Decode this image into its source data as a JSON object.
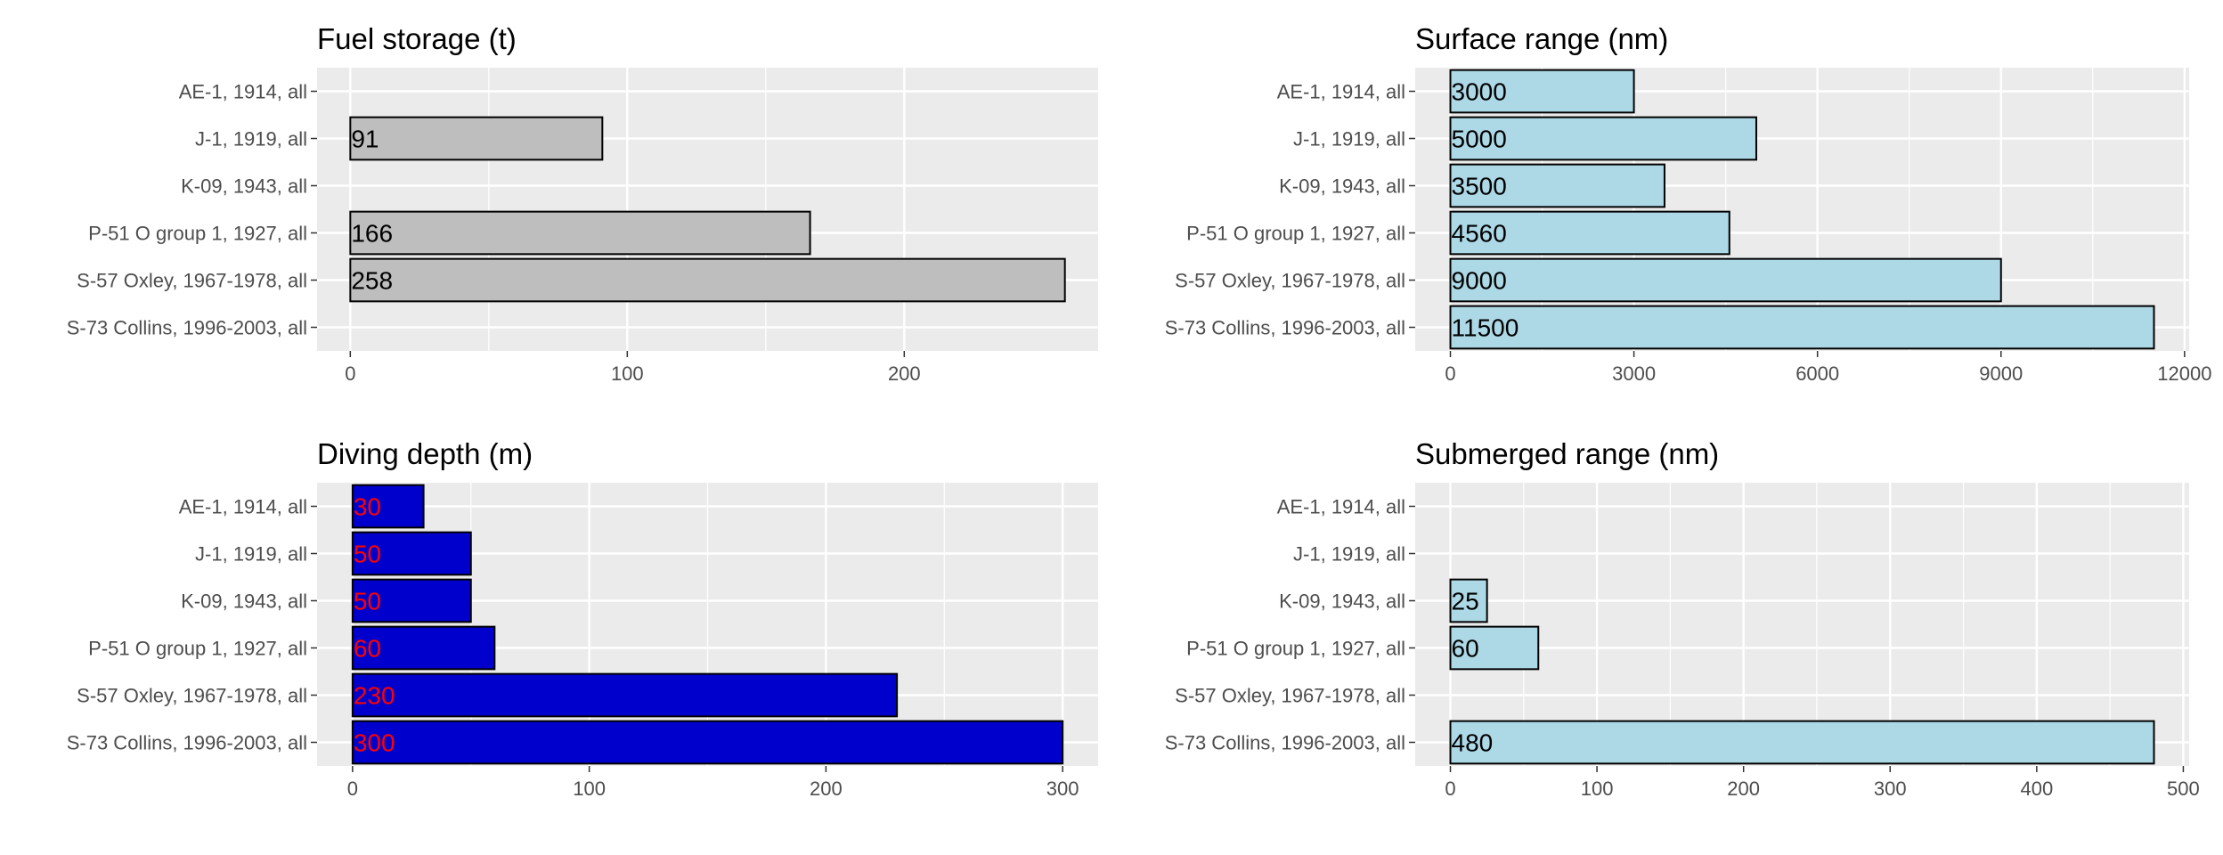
{
  "chart_data": [
    {
      "type": "bar",
      "orientation": "horizontal",
      "title": "Fuel storage (t)",
      "categories": [
        "AE-1, 1914, all",
        "J-1, 1919, all",
        "K-09, 1943, all",
        "P-51 O group 1, 1927, all",
        "S-57 Oxley, 1967-1978, all",
        "S-73 Collins, 1996-2003, all"
      ],
      "values": [
        null,
        91,
        null,
        166,
        258,
        null
      ],
      "xlim": [
        -12,
        270
      ],
      "xticks": [
        0,
        100,
        200
      ],
      "fill": "#bebebe",
      "label_color": "#000000",
      "grid": true
    },
    {
      "type": "bar",
      "orientation": "horizontal",
      "title": "Surface range (nm)",
      "categories": [
        "AE-1, 1914, all",
        "J-1, 1919, all",
        "K-09, 1943, all",
        "P-51 O group 1, 1927, all",
        "S-57 Oxley, 1967-1978, all",
        "S-73 Collins, 1996-2003, all"
      ],
      "values": [
        3000,
        5000,
        3500,
        4560,
        9000,
        11500
      ],
      "xlim": [
        -575,
        12075
      ],
      "xticks": [
        0,
        3000,
        6000,
        9000,
        12000
      ],
      "fill": "#add8e6",
      "label_color": "#000000",
      "grid": true
    },
    {
      "type": "bar",
      "orientation": "horizontal",
      "title": "Diving depth (m)",
      "categories": [
        "AE-1, 1914, all",
        "J-1, 1919, all",
        "K-09, 1943, all",
        "P-51 O group 1, 1927, all",
        "S-57 Oxley, 1967-1978, all",
        "S-73 Collins, 1996-2003, all"
      ],
      "values": [
        30,
        50,
        50,
        60,
        230,
        300
      ],
      "xlim": [
        -15,
        315
      ],
      "xticks": [
        0,
        100,
        200,
        300
      ],
      "fill": "#0000cd",
      "label_color": "#ff0000",
      "grid": true
    },
    {
      "type": "bar",
      "orientation": "horizontal",
      "title": "Submerged range (nm)",
      "categories": [
        "AE-1, 1914, all",
        "J-1, 1919, all",
        "K-09, 1943, all",
        "P-51 O group 1, 1927, all",
        "S-57 Oxley, 1967-1978, all",
        "S-73 Collins, 1996-2003, all"
      ],
      "values": [
        null,
        null,
        25,
        60,
        null,
        480
      ],
      "xlim": [
        -24,
        504
      ],
      "xticks": [
        0,
        100,
        200,
        300,
        400,
        500
      ],
      "fill": "#add8e6",
      "label_color": "#000000",
      "grid": true
    }
  ],
  "style": {
    "panel_bg": "#ebebeb",
    "grid_color": "#ffffff",
    "bar_stroke": "#000000",
    "text_color": "#4d4d4d"
  }
}
